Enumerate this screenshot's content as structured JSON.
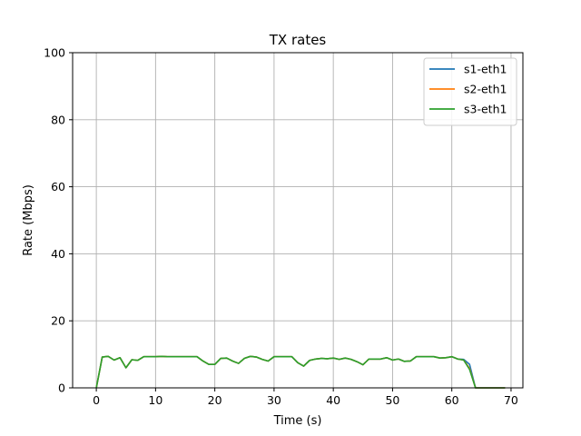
{
  "chart_data": {
    "type": "line",
    "title": "TX rates",
    "xlabel": "Time (s)",
    "ylabel": "Rate (Mbps)",
    "xlim": [
      -4,
      72
    ],
    "ylim": [
      0,
      100
    ],
    "xticks": [
      "0",
      "10",
      "20",
      "30",
      "40",
      "50",
      "60",
      "70"
    ],
    "yticks": [
      "0",
      "20",
      "40",
      "60",
      "80",
      "100"
    ],
    "grid": true,
    "legend_position": "upper-right",
    "x": [
      0,
      1,
      2,
      3,
      4,
      5,
      6,
      7,
      8,
      9,
      10,
      11,
      12,
      13,
      14,
      15,
      16,
      17,
      18,
      19,
      20,
      21,
      22,
      23,
      24,
      25,
      26,
      27,
      28,
      29,
      30,
      31,
      32,
      33,
      34,
      35,
      36,
      37,
      38,
      39,
      40,
      41,
      42,
      43,
      44,
      45,
      46,
      47,
      48,
      49,
      50,
      51,
      52,
      53,
      54,
      55,
      56,
      57,
      58,
      59,
      60,
      61,
      62,
      63,
      64,
      65,
      66,
      67,
      68,
      69
    ],
    "series": [
      {
        "name": "s1-eth1",
        "color": "#1f77b4",
        "values": [
          0,
          9.2,
          9.4,
          8.3,
          9.0,
          6.0,
          8.4,
          8.2,
          9.3,
          9.3,
          9.3,
          9.4,
          9.3,
          9.3,
          9.3,
          9.3,
          9.3,
          9.3,
          8.0,
          7.0,
          7.0,
          8.8,
          8.9,
          8.0,
          7.3,
          8.8,
          9.4,
          9.2,
          8.5,
          8.0,
          9.3,
          9.3,
          9.3,
          9.3,
          7.5,
          6.5,
          8.2,
          8.6,
          8.8,
          8.7,
          8.9,
          8.5,
          8.9,
          8.5,
          7.8,
          6.9,
          8.6,
          8.6,
          8.6,
          9.0,
          8.3,
          8.6,
          7.9,
          8.0,
          9.3,
          9.3,
          9.3,
          9.3,
          8.9,
          9.0,
          9.3,
          8.6,
          8.5,
          7.0,
          0,
          0,
          0,
          0,
          0,
          0
        ]
      },
      {
        "name": "s2-eth1",
        "color": "#ff7f0e",
        "values": [
          0,
          9.2,
          9.4,
          8.3,
          9.0,
          6.0,
          8.4,
          8.2,
          9.3,
          9.3,
          9.3,
          9.4,
          9.3,
          9.3,
          9.3,
          9.3,
          9.3,
          9.3,
          8.0,
          7.0,
          7.0,
          8.8,
          8.9,
          8.0,
          7.3,
          8.8,
          9.4,
          9.2,
          8.5,
          8.0,
          9.3,
          9.3,
          9.3,
          9.3,
          7.5,
          6.5,
          8.2,
          8.6,
          8.8,
          8.7,
          8.9,
          8.5,
          8.9,
          8.5,
          7.8,
          6.9,
          8.6,
          8.6,
          8.6,
          9.0,
          8.3,
          8.6,
          7.9,
          8.0,
          9.3,
          9.3,
          9.3,
          9.3,
          8.9,
          9.0,
          9.3,
          8.6,
          8.3,
          5.8,
          0,
          0,
          0,
          0,
          0,
          0
        ]
      },
      {
        "name": "s3-eth1",
        "color": "#2ca02c",
        "values": [
          0,
          9.2,
          9.4,
          8.3,
          9.0,
          6.0,
          8.4,
          8.2,
          9.3,
          9.3,
          9.3,
          9.4,
          9.3,
          9.3,
          9.3,
          9.3,
          9.3,
          9.3,
          8.0,
          7.0,
          7.0,
          8.8,
          8.9,
          8.0,
          7.3,
          8.8,
          9.4,
          9.2,
          8.5,
          8.0,
          9.3,
          9.3,
          9.3,
          9.3,
          7.5,
          6.5,
          8.2,
          8.6,
          8.8,
          8.7,
          8.9,
          8.5,
          8.9,
          8.5,
          7.8,
          6.9,
          8.6,
          8.6,
          8.6,
          9.0,
          8.3,
          8.6,
          7.9,
          8.0,
          9.3,
          9.3,
          9.3,
          9.3,
          8.9,
          9.0,
          9.3,
          8.6,
          8.3,
          5.5,
          0,
          0,
          0,
          0,
          0,
          0
        ]
      }
    ]
  }
}
